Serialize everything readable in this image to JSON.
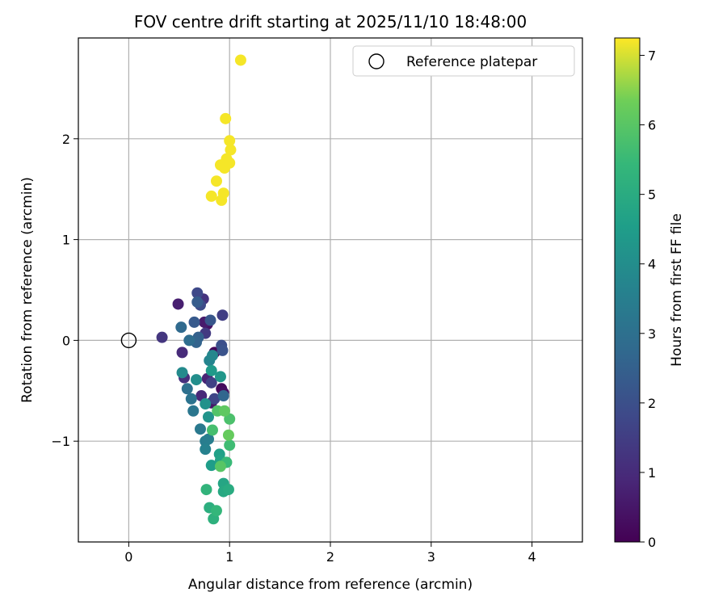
{
  "chart_data": {
    "type": "scatter",
    "title": "FOV centre drift starting at 2025/11/10 18:48:00",
    "xlabel": "Angular distance from reference (arcmin)",
    "ylabel": "Rotation from reference (arcmin)",
    "xlim": [
      -0.5,
      4.5
    ],
    "ylim": [
      -2.0,
      3.0
    ],
    "xticks": [
      0,
      1,
      2,
      3,
      4
    ],
    "yticks": [
      -1,
      0,
      1,
      2
    ],
    "xtick_labels": [
      "0",
      "1",
      "2",
      "3",
      "4"
    ],
    "ytick_labels": [
      "−1",
      "0",
      "1",
      "2"
    ],
    "grid": true,
    "legend": {
      "position": "top-right",
      "label": "Reference platepar"
    },
    "reference_point": {
      "x": 0.0,
      "y": 0.0
    },
    "colorbar": {
      "label": "Hours from first FF file",
      "range": [
        0,
        7.25
      ],
      "ticks": [
        0,
        1,
        2,
        3,
        4,
        5,
        6,
        7
      ],
      "tick_labels": [
        "0",
        "1",
        "2",
        "3",
        "4",
        "5",
        "6",
        "7"
      ],
      "colormap": "viridis"
    },
    "points": [
      {
        "x": 0.85,
        "y": -0.12,
        "h": 0.1
      },
      {
        "x": 0.92,
        "y": -0.48,
        "h": 0.2
      },
      {
        "x": 0.94,
        "y": -0.52,
        "h": 0.3
      },
      {
        "x": 0.78,
        "y": 0.16,
        "h": 0.4
      },
      {
        "x": 0.82,
        "y": -0.62,
        "h": 0.5
      },
      {
        "x": 0.75,
        "y": 0.18,
        "h": 0.6
      },
      {
        "x": 0.49,
        "y": 0.36,
        "h": 0.7
      },
      {
        "x": 0.78,
        "y": -0.38,
        "h": 0.8
      },
      {
        "x": 0.72,
        "y": -0.55,
        "h": 0.9
      },
      {
        "x": 0.53,
        "y": -0.12,
        "h": 1.0
      },
      {
        "x": 0.55,
        "y": -0.37,
        "h": 1.1
      },
      {
        "x": 0.74,
        "y": 0.41,
        "h": 1.2
      },
      {
        "x": 0.33,
        "y": 0.03,
        "h": 1.3
      },
      {
        "x": 0.76,
        "y": 0.07,
        "h": 1.4
      },
      {
        "x": 0.93,
        "y": 0.25,
        "h": 1.5
      },
      {
        "x": 0.82,
        "y": -0.42,
        "h": 1.6
      },
      {
        "x": 0.85,
        "y": -0.58,
        "h": 1.7
      },
      {
        "x": 0.68,
        "y": 0.47,
        "h": 1.8
      },
      {
        "x": 0.71,
        "y": 0.35,
        "h": 1.9
      },
      {
        "x": 0.92,
        "y": -0.05,
        "h": 2.0
      },
      {
        "x": 0.93,
        "y": -0.1,
        "h": 2.1
      },
      {
        "x": 0.81,
        "y": 0.2,
        "h": 2.2
      },
      {
        "x": 0.65,
        "y": 0.18,
        "h": 2.3
      },
      {
        "x": 0.68,
        "y": 0.38,
        "h": 2.4
      },
      {
        "x": 0.69,
        "y": 0.03,
        "h": 2.5
      },
      {
        "x": 0.67,
        "y": -0.02,
        "h": 2.6
      },
      {
        "x": 0.94,
        "y": -0.55,
        "h": 2.7
      },
      {
        "x": 0.52,
        "y": 0.13,
        "h": 2.8
      },
      {
        "x": 0.6,
        "y": 0.0,
        "h": 2.9
      },
      {
        "x": 0.58,
        "y": -0.48,
        "h": 3.0
      },
      {
        "x": 0.62,
        "y": -0.58,
        "h": 3.1
      },
      {
        "x": 0.64,
        "y": -0.7,
        "h": 3.2
      },
      {
        "x": 0.71,
        "y": -0.88,
        "h": 3.3
      },
      {
        "x": 0.76,
        "y": -1.0,
        "h": 3.4
      },
      {
        "x": 0.79,
        "y": -0.98,
        "h": 3.5
      },
      {
        "x": 0.76,
        "y": -1.08,
        "h": 3.6
      },
      {
        "x": 0.8,
        "y": -0.2,
        "h": 3.7
      },
      {
        "x": 0.83,
        "y": -0.15,
        "h": 3.8
      },
      {
        "x": 0.53,
        "y": -0.32,
        "h": 3.9
      },
      {
        "x": 0.67,
        "y": -0.39,
        "h": 4.0
      },
      {
        "x": 0.76,
        "y": -0.63,
        "h": 4.1
      },
      {
        "x": 0.79,
        "y": -0.76,
        "h": 4.2
      },
      {
        "x": 0.91,
        "y": -0.36,
        "h": 4.3
      },
      {
        "x": 0.82,
        "y": -0.3,
        "h": 4.4
      },
      {
        "x": 0.82,
        "y": -1.24,
        "h": 4.5
      },
      {
        "x": 0.9,
        "y": -1.13,
        "h": 4.6
      },
      {
        "x": 0.91,
        "y": -1.19,
        "h": 4.7
      },
      {
        "x": 0.94,
        "y": -1.42,
        "h": 4.8
      },
      {
        "x": 0.94,
        "y": -1.5,
        "h": 4.9
      },
      {
        "x": 0.99,
        "y": -1.48,
        "h": 5.0
      },
      {
        "x": 0.8,
        "y": -1.66,
        "h": 5.1
      },
      {
        "x": 0.84,
        "y": -1.77,
        "h": 5.2
      },
      {
        "x": 0.77,
        "y": -1.48,
        "h": 5.3
      },
      {
        "x": 0.87,
        "y": -1.69,
        "h": 5.4
      },
      {
        "x": 0.97,
        "y": -1.21,
        "h": 5.5
      },
      {
        "x": 1.0,
        "y": -1.04,
        "h": 5.6
      },
      {
        "x": 0.83,
        "y": -0.89,
        "h": 5.7
      },
      {
        "x": 1.0,
        "y": -0.78,
        "h": 5.8
      },
      {
        "x": 0.88,
        "y": -0.7,
        "h": 5.9
      },
      {
        "x": 0.91,
        "y": -1.25,
        "h": 6.0
      },
      {
        "x": 0.95,
        "y": -0.7,
        "h": 6.1
      },
      {
        "x": 0.99,
        "y": -0.94,
        "h": 6.2
      },
      {
        "x": 0.96,
        "y": 2.2,
        "h": 7.2
      },
      {
        "x": 1.11,
        "y": 2.78,
        "h": 7.2
      },
      {
        "x": 1.0,
        "y": 1.98,
        "h": 7.2
      },
      {
        "x": 1.01,
        "y": 1.89,
        "h": 7.2
      },
      {
        "x": 0.97,
        "y": 1.8,
        "h": 7.2
      },
      {
        "x": 1.0,
        "y": 1.76,
        "h": 7.2
      },
      {
        "x": 0.91,
        "y": 1.74,
        "h": 7.2
      },
      {
        "x": 0.95,
        "y": 1.71,
        "h": 7.2
      },
      {
        "x": 0.87,
        "y": 1.58,
        "h": 7.2
      },
      {
        "x": 0.82,
        "y": 1.43,
        "h": 7.2
      },
      {
        "x": 0.94,
        "y": 1.46,
        "h": 7.2
      },
      {
        "x": 0.92,
        "y": 1.39,
        "h": 7.2
      }
    ]
  }
}
